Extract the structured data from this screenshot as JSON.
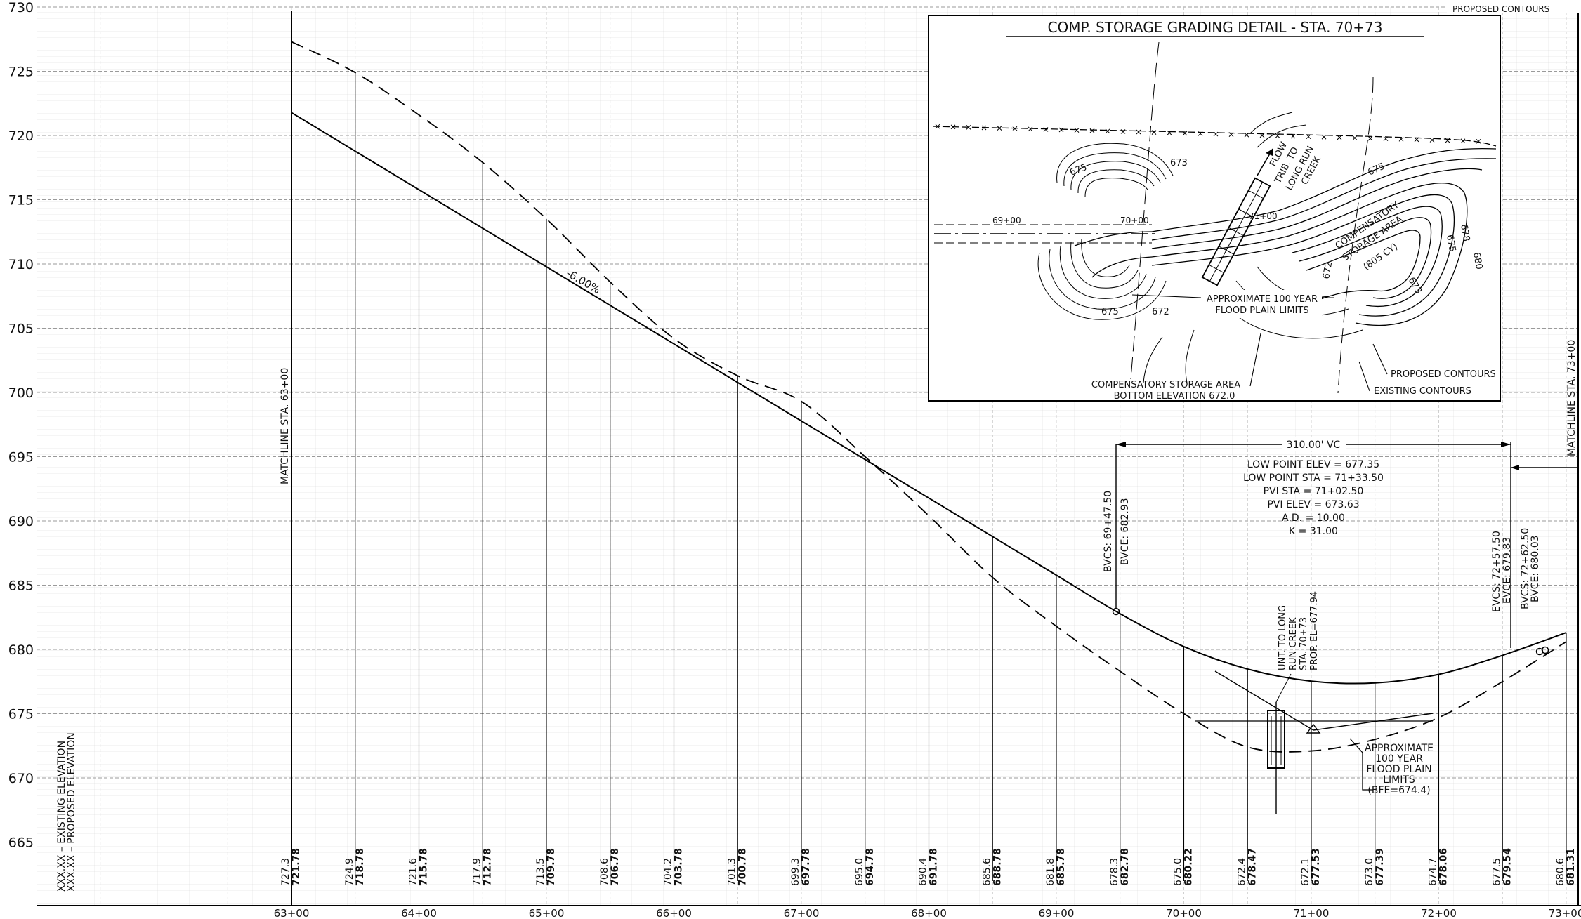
{
  "profile": {
    "y_axis_labels": [
      "730",
      "725",
      "720",
      "715",
      "710",
      "705",
      "700",
      "695",
      "690",
      "685",
      "680",
      "675",
      "670",
      "665"
    ],
    "y_axis_values": [
      730,
      725,
      720,
      715,
      710,
      705,
      700,
      695,
      690,
      685,
      680,
      675,
      670,
      665
    ],
    "station_labels": [
      "63+00",
      "64+00",
      "65+00",
      "66+00",
      "67+00",
      "68+00",
      "69+00",
      "70+00",
      "71+00",
      "72+00",
      "73+00"
    ],
    "station_values": [
      63,
      64,
      65,
      66,
      67,
      68,
      69,
      70,
      71,
      72,
      73
    ],
    "matchline_left": "MATCHLINE STA. 63+00",
    "matchline_right": "MATCHLINE STA. 73+00",
    "legend": [
      "XXX.XX – EXISTING ELEVATION",
      "XXX.XX – PROPOSED ELEVATION"
    ],
    "grade_label": "-6.00%",
    "bvc_labels": [
      "BVCS: 69+47.50",
      "BVCE: 682.93"
    ],
    "evc_labels": [
      "EVCS: 72+57.50",
      "EVCE: 679.83"
    ],
    "bvc2_labels": [
      "BVCS: 72+62.50",
      "BVCE: 680.03"
    ],
    "vc_length": "310.00' VC",
    "curve_data": [
      "LOW POINT ELEV = 677.35",
      "LOW POINT STA = 71+33.50",
      "PVI STA = 71+02.50",
      "PVI ELEV = 673.63",
      "A.D. = 10.00",
      "K = 31.00"
    ],
    "creek_label": [
      "UNT. TO LONG",
      "RUN CREEK",
      "STA. 70+73",
      "PROP. EL=677.94"
    ],
    "flood_label": [
      "APPROXIMATE",
      "100 YEAR",
      "FLOOD PLAIN",
      "LIMITS",
      "(BFE=674.4)"
    ],
    "top_fragment": "PROPOSED CONTOURS",
    "elevation_pairs": [
      {
        "sta": 63.0,
        "existing": "727.3",
        "proposed": "721.78"
      },
      {
        "sta": 63.5,
        "existing": "724.9",
        "proposed": "718.78"
      },
      {
        "sta": 64.0,
        "existing": "721.6",
        "proposed": "715.78"
      },
      {
        "sta": 64.5,
        "existing": "717.9",
        "proposed": "712.78"
      },
      {
        "sta": 65.0,
        "existing": "713.5",
        "proposed": "709.78"
      },
      {
        "sta": 65.5,
        "existing": "708.6",
        "proposed": "706.78"
      },
      {
        "sta": 66.0,
        "existing": "704.2",
        "proposed": "703.78"
      },
      {
        "sta": 66.5,
        "existing": "701.3",
        "proposed": "700.78"
      },
      {
        "sta": 67.0,
        "existing": "699.3",
        "proposed": "697.78"
      },
      {
        "sta": 67.5,
        "existing": "695.0",
        "proposed": "694.78"
      },
      {
        "sta": 68.0,
        "existing": "690.4",
        "proposed": "691.78"
      },
      {
        "sta": 68.5,
        "existing": "685.6",
        "proposed": "688.78"
      },
      {
        "sta": 69.0,
        "existing": "681.8",
        "proposed": "685.78"
      },
      {
        "sta": 69.5,
        "existing": "678.3",
        "proposed": "682.78"
      },
      {
        "sta": 70.0,
        "existing": "675.0",
        "proposed": "680.22"
      },
      {
        "sta": 70.5,
        "existing": "672.4",
        "proposed": "678.47"
      },
      {
        "sta": 71.0,
        "existing": "672.1",
        "proposed": "677.53"
      },
      {
        "sta": 71.5,
        "existing": "673.0",
        "proposed": "677.39"
      },
      {
        "sta": 72.0,
        "existing": "674.7",
        "proposed": "678.06"
      },
      {
        "sta": 72.5,
        "existing": "677.5",
        "proposed": "679.54"
      },
      {
        "sta": 73.0,
        "existing": "680.6",
        "proposed": "681.31"
      }
    ]
  },
  "detail": {
    "title": "COMP. STORAGE GRADING DETAIL - STA. 70+73",
    "labels": {
      "c675a": "675",
      "c673": "673",
      "flow": "FLOW",
      "trib": "TRIB. TO",
      "long_run": "LONG RUN",
      "creek": "CREEK",
      "s6900": "69+00",
      "s7000": "70+00",
      "s7100": "71+00",
      "c675b": "675",
      "comp1": "COMPENSATORY",
      "comp2": "STORAGE AREA",
      "comp3": "(805 CY)",
      "c672a": "672",
      "c675c": "675",
      "c678": "678",
      "c680": "680",
      "c673b": "673",
      "c675d": "675",
      "c672b": "672",
      "flood1": "APPROXIMATE 100 YEAR",
      "flood2": "FLOOD PLAIN LIMITS",
      "proposed": "PROPOSED CONTOURS",
      "existing": "EXISTING CONTOURS",
      "bottom1": "COMPENSATORY STORAGE AREA",
      "bottom2": "BOTTOM ELEVATION 672.0"
    }
  }
}
